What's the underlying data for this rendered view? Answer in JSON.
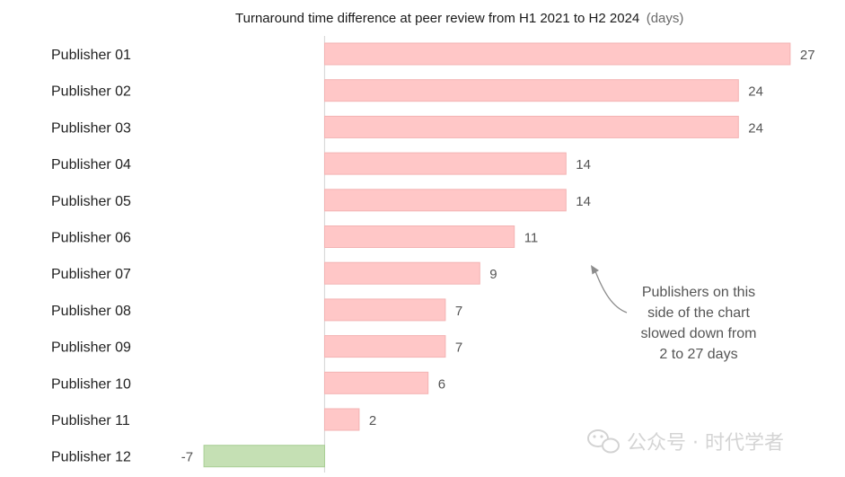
{
  "chart_data": {
    "type": "bar",
    "orientation": "horizontal",
    "title": "Turnaround time difference at peer review from H1 2021 to H2 2024",
    "title_unit": "(days)",
    "categories": [
      "Publisher 01",
      "Publisher 02",
      "Publisher 03",
      "Publisher 04",
      "Publisher 05",
      "Publisher 06",
      "Publisher 07",
      "Publisher 08",
      "Publisher 09",
      "Publisher 10",
      "Publisher 11",
      "Publisher 12"
    ],
    "values": [
      27,
      24,
      24,
      14,
      14,
      11,
      9,
      7,
      7,
      6,
      2,
      -7
    ],
    "value_labels": [
      "27",
      "24",
      "24",
      "14",
      "14",
      "11",
      "9",
      "7",
      "7",
      "6",
      "2",
      "-7"
    ],
    "xlim": [
      -7,
      27
    ],
    "grid": false,
    "colors": {
      "positive": "#ffc7c7",
      "positive_edge": "#f3b3b3",
      "negative": "#c5e0b4",
      "negative_edge": "#a9cf95",
      "zero_line": "#d9d9d9",
      "arrow": "#8c8c8c"
    },
    "annotation": {
      "lines": [
        "Publishers on this",
        "side of the chart",
        "slowed down from",
        "2 to 27 days"
      ]
    }
  },
  "watermark": {
    "icon": "wechat-icon",
    "text": "公众号 · 时代学者"
  }
}
